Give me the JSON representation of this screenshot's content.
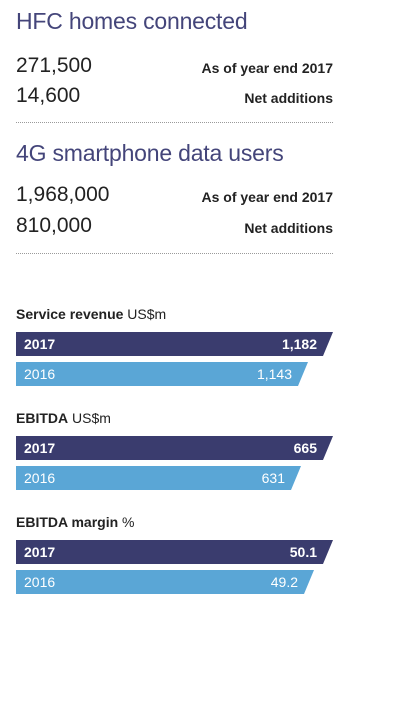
{
  "kpis": [
    {
      "title": "HFC homes connected",
      "rows": [
        {
          "value": "271,500",
          "label": "As of year end 2017"
        },
        {
          "value": "14,600",
          "label": "Net additions"
        }
      ]
    },
    {
      "title": "4G smartphone data users",
      "rows": [
        {
          "value": "1,968,000",
          "label": "As of year end 2017"
        },
        {
          "value": "810,000",
          "label": "Net additions"
        }
      ]
    }
  ],
  "colors": {
    "title": "#44457a",
    "bar_2017": "#3a3c6e",
    "bar_2016": "#5aa6d6"
  },
  "chart_data": [
    {
      "type": "bar",
      "title": "Service revenue",
      "unit": "US$m",
      "categories": [
        "2017",
        "2016"
      ],
      "values": [
        1182,
        1143
      ],
      "labels": [
        "1,182",
        "1,143"
      ]
    },
    {
      "type": "bar",
      "title": "EBITDA",
      "unit": "US$m",
      "categories": [
        "2017",
        "2016"
      ],
      "values": [
        665,
        631
      ],
      "labels": [
        "665",
        "631"
      ]
    },
    {
      "type": "bar",
      "title": "EBITDA margin",
      "unit": "%",
      "categories": [
        "2017",
        "2016"
      ],
      "values": [
        50.1,
        49.2
      ],
      "labels": [
        "50.1",
        "49.2"
      ]
    }
  ]
}
